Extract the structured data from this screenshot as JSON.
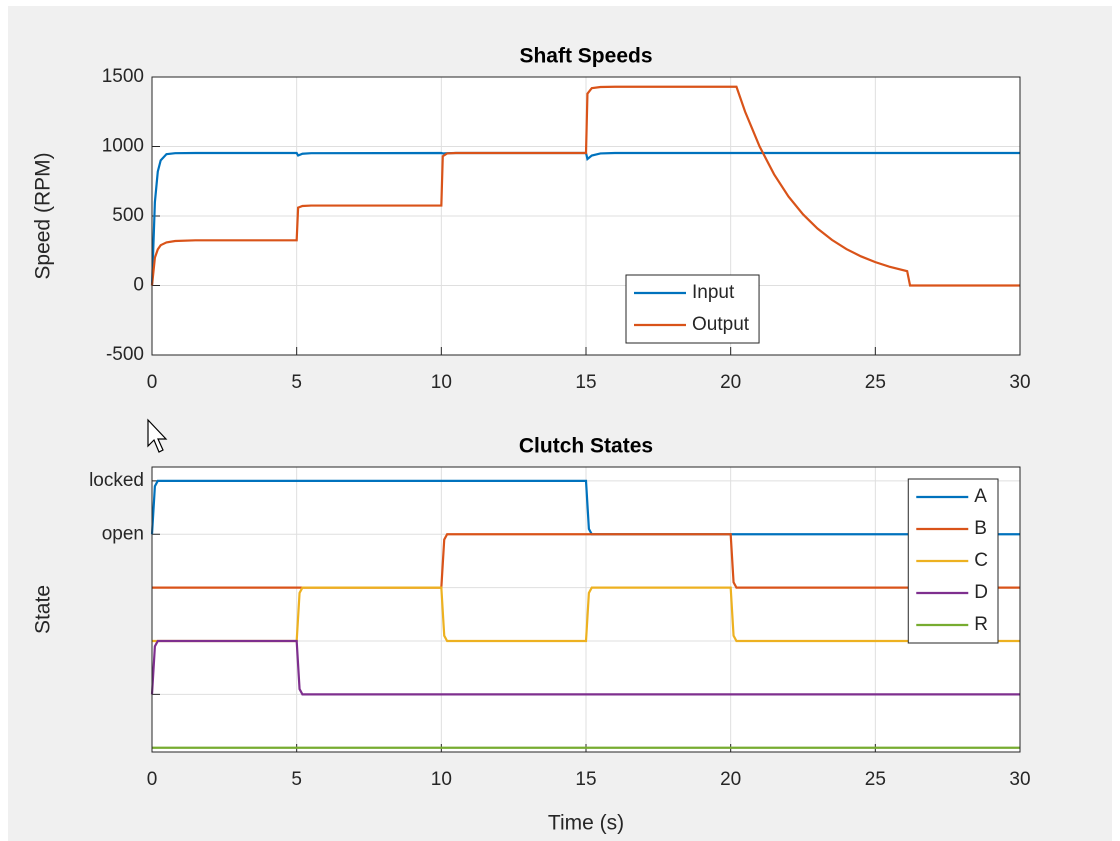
{
  "chart_data": [
    {
      "type": "line",
      "title": "Shaft Speeds",
      "ylabel": "Speed (RPM)",
      "x": [
        0,
        0.1,
        0.2,
        0.3,
        0.5,
        0.8,
        1.5,
        5,
        5.05,
        5.2,
        5.5,
        10,
        10.05,
        10.2,
        10.5,
        15,
        15.05,
        15.2,
        15.5,
        16,
        20,
        20.2,
        20.5,
        21,
        21.5,
        22,
        22.5,
        23,
        23.5,
        24,
        24.5,
        25,
        25.5,
        26.1,
        26.2,
        30
      ],
      "series": [
        {
          "name": "Input",
          "color": "#0072bd",
          "values": [
            0,
            600,
            820,
            900,
            945,
            952,
            953,
            953,
            935,
            948,
            952,
            953,
            950,
            952,
            953,
            953,
            910,
            935,
            950,
            953,
            953,
            953,
            953,
            953,
            953,
            953,
            953,
            953,
            953,
            953,
            953,
            953,
            953,
            953,
            953,
            953
          ]
        },
        {
          "name": "Output",
          "color": "#d95319",
          "values": [
            0,
            200,
            260,
            290,
            310,
            320,
            325,
            325,
            560,
            572,
            575,
            575,
            930,
            950,
            953,
            953,
            1380,
            1420,
            1428,
            1430,
            1430,
            1430,
            1250,
            1000,
            800,
            640,
            512,
            410,
            328,
            262,
            210,
            168,
            134,
            103,
            0,
            0
          ]
        }
      ],
      "xlim": [
        0,
        30
      ],
      "xticks": [
        0,
        5,
        10,
        15,
        20,
        25,
        30
      ],
      "ylim": [
        -500,
        1500
      ],
      "yticks": [
        -500,
        0,
        500,
        1000,
        1500
      ],
      "grid": true,
      "legend": "south"
    },
    {
      "type": "line",
      "title": "Clutch States",
      "xlabel": "Time (s)",
      "ylabel": "State",
      "x": [
        0,
        0.1,
        0.2,
        5,
        5.1,
        5.2,
        10,
        10.1,
        10.2,
        15,
        15.1,
        15.2,
        20,
        20.1,
        20.2,
        30
      ],
      "series": [
        {
          "name": "A",
          "color": "#0072bd",
          "values": [
            0,
            0.9,
            1,
            1,
            1,
            1,
            1,
            1,
            1,
            1,
            0.1,
            0,
            0,
            0,
            0,
            0
          ]
        },
        {
          "name": "B",
          "color": "#d95319",
          "values": [
            -1,
            -1,
            -1,
            -1,
            -1,
            -1,
            -1,
            -0.1,
            0,
            0,
            0,
            0,
            0,
            -0.9,
            -1,
            -1
          ]
        },
        {
          "name": "C",
          "color": "#edb120",
          "values": [
            -2,
            -2,
            -2,
            -2,
            -1.1,
            -1,
            -1,
            -1.9,
            -2,
            -2,
            -1.1,
            -1,
            -1,
            -1.9,
            -2,
            -2
          ]
        },
        {
          "name": "D",
          "color": "#7e2f8e",
          "values": [
            -3,
            -2.1,
            -2,
            -2,
            -2.9,
            -3,
            -3,
            -3,
            -3,
            -3,
            -3,
            -3,
            -3,
            -3,
            -3,
            -3
          ]
        },
        {
          "name": "R",
          "color": "#77ac30",
          "values": [
            -4,
            -4,
            -4,
            -4,
            -4,
            -4,
            -4,
            -4,
            -4,
            -4,
            -4,
            -4,
            -4,
            -4,
            -4,
            -4
          ]
        }
      ],
      "xlim": [
        0,
        30
      ],
      "xticks": [
        0,
        5,
        10,
        15,
        20,
        25,
        30
      ],
      "ylim": [
        -4.08,
        1.26
      ],
      "yticks": [
        {
          "value": 1,
          "label": "locked"
        },
        {
          "value": 0,
          "label": "open"
        },
        {
          "value": -1,
          "label": null
        },
        {
          "value": -2,
          "label": null
        },
        {
          "value": -3,
          "label": null
        },
        {
          "value": -4,
          "label": null
        }
      ],
      "grid": true,
      "legend": "northeast"
    }
  ]
}
